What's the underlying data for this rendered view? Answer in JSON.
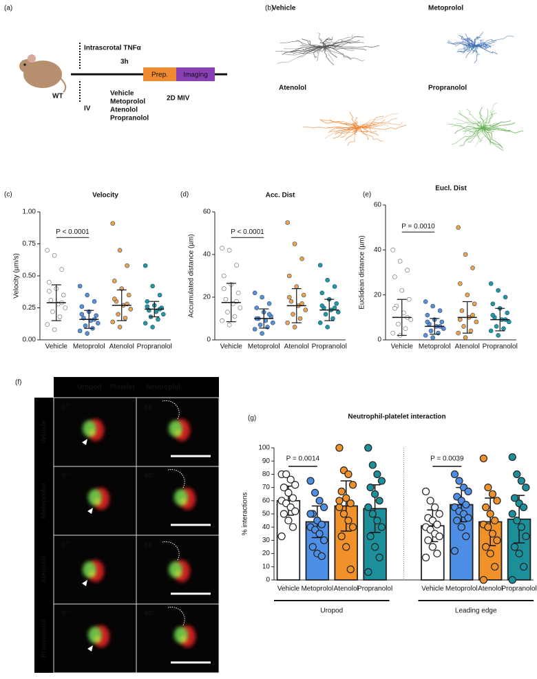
{
  "panel_labels": [
    "(a)",
    "(b)",
    "(c)",
    "(d)",
    "(e)",
    "(f)",
    "(g)"
  ],
  "schematic": {
    "strain": "WT",
    "stimulus": "Intrascrotal TNFα",
    "duration": "3h",
    "route": "IV",
    "treatments": [
      "Vehicle",
      "Metoprolol",
      "Atenolol",
      "Propranolol"
    ],
    "prep": "Prep.",
    "imaging": "Imaging",
    "method": "2D MIV"
  },
  "tracks": {
    "groups": [
      {
        "name": "Vehicle",
        "color": "#555555"
      },
      {
        "name": "Metoprolol",
        "color": "#3f6db5"
      },
      {
        "name": "Atenolol",
        "color": "#ee8a3c"
      },
      {
        "name": "Propranolol",
        "color": "#5fae4e"
      }
    ]
  },
  "microscopy": {
    "channels": [
      {
        "name": "Uropod",
        "color": "#f2e22c"
      },
      {
        "name": "Platelet",
        "color": "#e02424"
      },
      {
        "name": "Neutrophil",
        "color": "#6bd04c"
      }
    ],
    "rows": [
      "Vehicle",
      "Metoprolol",
      "Atenolol",
      "Propranolol"
    ],
    "times": [
      "0’’",
      "60’’"
    ]
  },
  "chart_data": [
    {
      "type": "dotplot",
      "title": "Velocity",
      "y_label": "Velocity (µm/s)",
      "categories": [
        "Vehicle",
        "Metoprolol",
        "Atenolol",
        "Propranolol"
      ],
      "colors": [
        "#ffffff",
        "#5b8fd6",
        "#f0a14a",
        "#1f9aa0"
      ],
      "ylim": [
        0,
        1
      ],
      "yticks": [
        {
          "value": 0,
          "label": "0.00"
        },
        0.25,
        {
          "value": 0.5,
          "label": "0.50"
        },
        0.75,
        {
          "value": 1,
          "label": "1.00"
        }
      ],
      "annotation": "P < 0.0001",
      "groups": [
        {
          "mean": 0.29,
          "sd": 0.14,
          "values": [
            0.7,
            0.66,
            0.55,
            0.45,
            0.4,
            0.35,
            0.31,
            0.28,
            0.25,
            0.22,
            0.18,
            0.12,
            0.08,
            0.29,
            0.38
          ]
        },
        {
          "mean": 0.16,
          "sd": 0.07,
          "values": [
            0.42,
            0.35,
            0.3,
            0.26,
            0.22,
            0.19,
            0.17,
            0.15,
            0.13,
            0.11,
            0.09,
            0.07,
            0.05,
            0.16,
            0.2
          ]
        },
        {
          "mean": 0.27,
          "sd": 0.12,
          "values": [
            0.91,
            0.7,
            0.58,
            0.46,
            0.4,
            0.35,
            0.3,
            0.27,
            0.24,
            0.2,
            0.17,
            0.14,
            0.1,
            0.28,
            0.32
          ]
        },
        {
          "mean": 0.24,
          "sd": 0.06,
          "values": [
            0.58,
            0.42,
            0.35,
            0.3,
            0.27,
            0.25,
            0.23,
            0.22,
            0.2,
            0.18,
            0.16,
            0.13,
            0.1,
            0.24,
            0.26
          ]
        }
      ]
    },
    {
      "type": "dotplot",
      "title": "Acc. Dist",
      "y_label": "Accumulated distance (µm)",
      "categories": [
        "Vehicle",
        "Metoprolol",
        "Atenolol",
        "Propranolol"
      ],
      "colors": [
        "#ffffff",
        "#5b8fd6",
        "#f0a14a",
        "#1f9aa0"
      ],
      "ylim": [
        0,
        60
      ],
      "yticks": [
        0,
        20,
        40,
        60
      ],
      "annotation": "P < 0.0001",
      "groups": [
        {
          "mean": 17.5,
          "sd": 9,
          "values": [
            43,
            42,
            35,
            30,
            26,
            22,
            19,
            17,
            15,
            13,
            11,
            9,
            7,
            18,
            24
          ]
        },
        {
          "mean": 10,
          "sd": 4.5,
          "values": [
            22,
            20,
            17,
            15,
            13,
            11,
            10,
            9,
            8,
            7,
            6,
            5,
            3,
            12,
            10
          ]
        },
        {
          "mean": 16,
          "sd": 8,
          "values": [
            55,
            45,
            38,
            30,
            25,
            21,
            18,
            16,
            14,
            12,
            10,
            8,
            6,
            17,
            20
          ]
        },
        {
          "mean": 14,
          "sd": 5,
          "values": [
            35,
            28,
            25,
            22,
            19,
            17,
            15,
            14,
            13,
            12,
            10,
            8,
            6,
            15,
            16
          ]
        }
      ]
    },
    {
      "type": "dotplot",
      "title": "Eucl. Dist",
      "y_label": "Euclidean distance (µm)",
      "categories": [
        "Vehicle",
        "Metoprolol",
        "Atenolol",
        "Propranolol"
      ],
      "colors": [
        "#ffffff",
        "#5b8fd6",
        "#f0a14a",
        "#1f9aa0"
      ],
      "ylim": [
        0,
        60
      ],
      "yticks": [
        0,
        20,
        40,
        60
      ],
      "annotation": "P = 0.0010",
      "groups": [
        {
          "mean": 10,
          "sd": 8,
          "values": [
            40,
            35,
            31,
            28,
            22,
            18,
            15,
            12,
            9,
            7,
            5,
            3,
            2,
            10,
            14
          ]
        },
        {
          "mean": 6,
          "sd": 3.5,
          "values": [
            17,
            15,
            13,
            11,
            9,
            8,
            7,
            6,
            5,
            4,
            3,
            2,
            1,
            6,
            8
          ]
        },
        {
          "mean": 10,
          "sd": 7,
          "values": [
            50,
            38,
            32,
            25,
            20,
            16,
            13,
            10,
            8,
            6,
            4,
            3,
            1,
            11,
            9
          ]
        },
        {
          "mean": 9,
          "sd": 5,
          "values": [
            25,
            22,
            19,
            16,
            14,
            12,
            10,
            9,
            8,
            6,
            5,
            4,
            2,
            9,
            11
          ]
        }
      ]
    },
    {
      "type": "bar",
      "title": "Neutrophil-platelet interaction",
      "y_label": "% interactions",
      "categories": [
        "Vehicle",
        "Metoprolol",
        "Atenolol",
        "Propranolol"
      ],
      "colors": [
        "#ffffff",
        "#4d8fe6",
        "#f0912a",
        "#1b8f9a"
      ],
      "ylim": [
        0,
        100
      ],
      "yticks": [
        0,
        10,
        20,
        30,
        40,
        50,
        60,
        70,
        80,
        90,
        100
      ],
      "clusters": [
        {
          "name": "Uropod",
          "annotation": "P = 0.0014",
          "bars": [
            {
              "mean": 60,
              "sd": 11,
              "values": [
                80,
                80,
                76,
                72,
                70,
                66,
                62,
                60,
                58,
                55,
                52,
                50,
                45,
                40,
                33
              ]
            },
            {
              "mean": 44,
              "sd": 12,
              "values": [
                75,
                66,
                60,
                55,
                50,
                45,
                42,
                40,
                38,
                35,
                30,
                25,
                20,
                18,
                50
              ]
            },
            {
              "mean": 56,
              "sd": 19,
              "values": [
                100,
                83,
                80,
                72,
                67,
                62,
                58,
                55,
                50,
                45,
                40,
                33,
                25,
                8,
                60
              ]
            },
            {
              "mean": 54,
              "sd": 18,
              "values": [
                100,
                87,
                80,
                75,
                70,
                65,
                60,
                55,
                50,
                45,
                40,
                33,
                25,
                17,
                6
              ]
            }
          ]
        },
        {
          "name": "Leading edge",
          "annotation": "P = 0.0039",
          "bars": [
            {
              "mean": 41,
              "sd": 12,
              "values": [
                67,
                60,
                55,
                50,
                47,
                45,
                42,
                40,
                38,
                35,
                33,
                30,
                25,
                20,
                17
              ]
            },
            {
              "mean": 57,
              "sd": 13,
              "values": [
                80,
                75,
                70,
                67,
                63,
                60,
                57,
                55,
                52,
                50,
                47,
                45,
                40,
                33,
                22
              ]
            },
            {
              "mean": 44,
              "sd": 18,
              "values": [
                92,
                70,
                65,
                60,
                55,
                50,
                45,
                42,
                40,
                35,
                30,
                25,
                20,
                10,
                0
              ]
            },
            {
              "mean": 46,
              "sd": 18,
              "values": [
                93,
                80,
                75,
                70,
                62,
                58,
                55,
                50,
                45,
                40,
                33,
                25,
                20,
                10,
                0
              ]
            }
          ]
        }
      ]
    }
  ]
}
